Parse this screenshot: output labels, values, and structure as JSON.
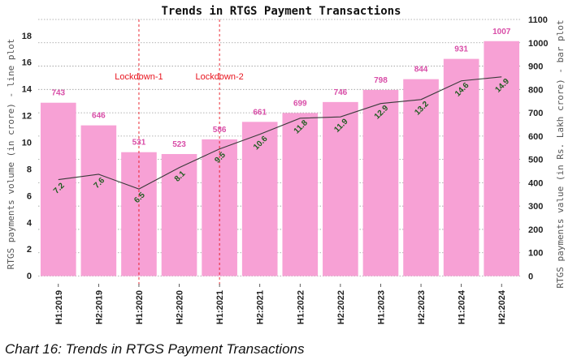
{
  "caption": "Chart 16: Trends in RTGS Payment Transactions",
  "chart_data": {
    "type": "bar",
    "title": "Trends in RTGS Payment Transactions",
    "categories": [
      "H1:2019",
      "H2:2019",
      "H1:2020",
      "H2:2020",
      "H1:2021",
      "H2:2021",
      "H1:2022",
      "H2:2022",
      "H1:2023",
      "H2:2023",
      "H1:2024",
      "H2:2024"
    ],
    "series": [
      {
        "type": "bar",
        "axis": "right",
        "color": "#f7a1d5",
        "label_color": "#d94ea8",
        "values": [
          743,
          646,
          531,
          523,
          586,
          661,
          699,
          746,
          798,
          844,
          931,
          1007
        ],
        "value_labels": [
          "743",
          "646",
          "531",
          "523",
          "586",
          "661",
          "699",
          "746",
          "798",
          "844",
          "931",
          "1007"
        ]
      },
      {
        "type": "line",
        "axis": "left",
        "color": "#3a3a3a",
        "label_color": "#1f5c1f",
        "values": [
          7.2,
          7.6,
          6.5,
          8.1,
          9.5,
          10.6,
          11.8,
          11.9,
          12.9,
          13.2,
          14.6,
          14.9
        ],
        "value_labels": [
          "7.2",
          "7.6",
          "6.5",
          "8.1",
          "9.5",
          "10.6",
          "11.8",
          "11.9",
          "12.9",
          "13.2",
          "14.6",
          "14.9"
        ]
      }
    ],
    "ylabel_left": "RTGS payments volume (in crore) - line plot",
    "ylabel_right": "RTGS payments value (in Rs. Lakh crore) - bar plot",
    "ylim_left": [
      -0.6,
      19.2
    ],
    "ylim_right": [
      -33,
      1100
    ],
    "yticks_left": [
      "0",
      "2",
      "4",
      "6",
      "8",
      "10",
      "12",
      "14",
      "16",
      "18"
    ],
    "yticks_right": [
      "0",
      "100",
      "200",
      "300",
      "400",
      "500",
      "600",
      "700",
      "800",
      "900",
      "1000",
      "1100"
    ],
    "grid": true,
    "annotations": [
      {
        "label": "Lockdown-1",
        "at_category": "H1:2020"
      },
      {
        "label": "Lockdown-2",
        "at_category": "H1:2021"
      }
    ],
    "event_color": "#e8141e"
  }
}
